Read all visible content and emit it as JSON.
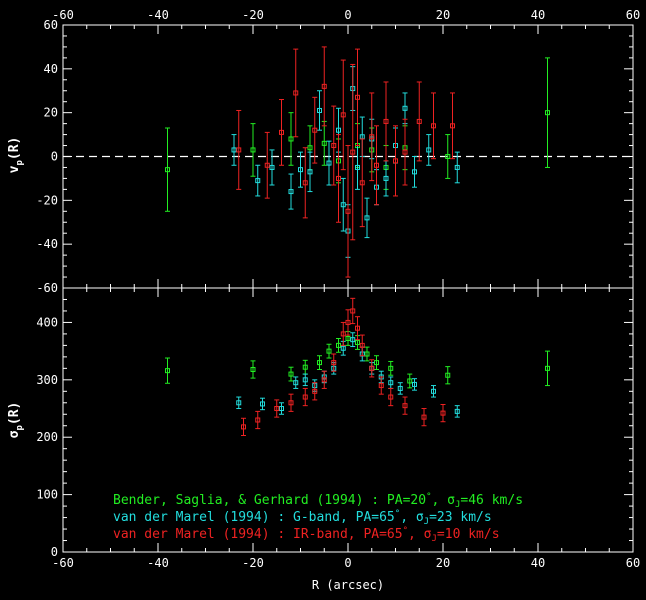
{
  "chart_data": [
    {
      "type": "scatter",
      "panel": "top",
      "title": "",
      "ylabel": "v_p(R)",
      "xlabel": "",
      "xlim": [
        -60,
        60
      ],
      "ylim": [
        -60,
        60
      ],
      "xticks": [
        -60,
        -40,
        -20,
        0,
        20,
        40,
        60
      ],
      "yticks": [
        -60,
        -40,
        -20,
        0,
        20,
        40,
        60
      ],
      "x_tick_labels_on_top": true,
      "reference_line": {
        "y": 0,
        "style": "dashed",
        "color": "#ffffff"
      },
      "series": [
        {
          "name": "Bender, Saglia, & Gerhard (1994)",
          "color": "#22ee22",
          "points": [
            {
              "x": -38,
              "y": -6,
              "err": 19
            },
            {
              "x": -20,
              "y": 3,
              "err": 12
            },
            {
              "x": -12,
              "y": 8,
              "err": 12
            },
            {
              "x": -8,
              "y": 4,
              "err": 10
            },
            {
              "x": -5,
              "y": 6,
              "err": 10
            },
            {
              "x": -2,
              "y": -2,
              "err": 10
            },
            {
              "x": 2,
              "y": 5,
              "err": 10
            },
            {
              "x": 5,
              "y": 3,
              "err": 10
            },
            {
              "x": 8,
              "y": -5,
              "err": 10
            },
            {
              "x": 12,
              "y": 4,
              "err": 10
            },
            {
              "x": 21,
              "y": 0,
              "err": 10
            },
            {
              "x": 42,
              "y": 20,
              "err": 25
            }
          ]
        },
        {
          "name": "van der Marel (1994) : G-band",
          "color": "#22dddd",
          "points": [
            {
              "x": -24,
              "y": 3,
              "err": 7
            },
            {
              "x": -19,
              "y": -11,
              "err": 7
            },
            {
              "x": -16,
              "y": -5,
              "err": 8
            },
            {
              "x": -12,
              "y": -16,
              "err": 8
            },
            {
              "x": -10,
              "y": -6,
              "err": 8
            },
            {
              "x": -8,
              "y": -7,
              "err": 9
            },
            {
              "x": -6,
              "y": 21,
              "err": 9
            },
            {
              "x": -4,
              "y": -3,
              "err": 10
            },
            {
              "x": -2,
              "y": 12,
              "err": 10
            },
            {
              "x": -1,
              "y": -22,
              "err": 12
            },
            {
              "x": 0,
              "y": -34,
              "err": 12
            },
            {
              "x": 1,
              "y": 31,
              "err": 10
            },
            {
              "x": 2,
              "y": -5,
              "err": 10
            },
            {
              "x": 3,
              "y": 9,
              "err": 9
            },
            {
              "x": 4,
              "y": -28,
              "err": 9
            },
            {
              "x": 5,
              "y": 8,
              "err": 9
            },
            {
              "x": 6,
              "y": -14,
              "err": 8
            },
            {
              "x": 8,
              "y": -10,
              "err": 8
            },
            {
              "x": 10,
              "y": 5,
              "err": 8
            },
            {
              "x": 12,
              "y": 22,
              "err": 7
            },
            {
              "x": 14,
              "y": -7,
              "err": 7
            },
            {
              "x": 17,
              "y": 3,
              "err": 7
            },
            {
              "x": 23,
              "y": -5,
              "err": 7
            }
          ]
        },
        {
          "name": "van der Marel (1994) : IR-band",
          "color": "#ee2222",
          "points": [
            {
              "x": -23,
              "y": 3,
              "err": 18
            },
            {
              "x": -17,
              "y": -4,
              "err": 15
            },
            {
              "x": -14,
              "y": 11,
              "err": 15
            },
            {
              "x": -11,
              "y": 29,
              "err": 20
            },
            {
              "x": -9,
              "y": -12,
              "err": 16
            },
            {
              "x": -7,
              "y": 12,
              "err": 15
            },
            {
              "x": -5,
              "y": 32,
              "err": 18
            },
            {
              "x": -3,
              "y": 5,
              "err": 18
            },
            {
              "x": -2,
              "y": -10,
              "err": 20
            },
            {
              "x": -1,
              "y": 19,
              "err": 25
            },
            {
              "x": 0,
              "y": -25,
              "err": 30
            },
            {
              "x": 1,
              "y": 2,
              "err": 40
            },
            {
              "x": 2,
              "y": 27,
              "err": 22
            },
            {
              "x": 3,
              "y": -12,
              "err": 20
            },
            {
              "x": 5,
              "y": 9,
              "err": 20
            },
            {
              "x": 6,
              "y": -4,
              "err": 18
            },
            {
              "x": 8,
              "y": 16,
              "err": 18
            },
            {
              "x": 10,
              "y": -2,
              "err": 16
            },
            {
              "x": 12,
              "y": 2,
              "err": 15
            },
            {
              "x": 15,
              "y": 16,
              "err": 18
            },
            {
              "x": 18,
              "y": 14,
              "err": 15
            },
            {
              "x": 22,
              "y": 14,
              "err": 15
            }
          ]
        }
      ]
    },
    {
      "type": "scatter",
      "panel": "bottom",
      "title": "",
      "ylabel": "σ_p(R)",
      "xlabel": "R (arcsec)",
      "xlim": [
        -60,
        60
      ],
      "ylim": [
        0,
        460
      ],
      "xticks": [
        -60,
        -40,
        -20,
        0,
        20,
        40,
        60
      ],
      "yticks": [
        0,
        100,
        200,
        300,
        400
      ],
      "series": [
        {
          "name": "Bender, Saglia, & Gerhard (1994)",
          "color": "#22ee22",
          "points": [
            {
              "x": -38,
              "y": 316,
              "err": 22
            },
            {
              "x": -20,
              "y": 318,
              "err": 15
            },
            {
              "x": -12,
              "y": 310,
              "err": 12
            },
            {
              "x": -9,
              "y": 322,
              "err": 12
            },
            {
              "x": -6,
              "y": 330,
              "err": 12
            },
            {
              "x": -4,
              "y": 350,
              "err": 12
            },
            {
              "x": -2,
              "y": 360,
              "err": 12
            },
            {
              "x": 0,
              "y": 372,
              "err": 12
            },
            {
              "x": 2,
              "y": 365,
              "err": 12
            },
            {
              "x": 4,
              "y": 345,
              "err": 12
            },
            {
              "x": 6,
              "y": 330,
              "err": 12
            },
            {
              "x": 9,
              "y": 320,
              "err": 12
            },
            {
              "x": 13,
              "y": 298,
              "err": 12
            },
            {
              "x": 21,
              "y": 308,
              "err": 15
            },
            {
              "x": 42,
              "y": 320,
              "err": 30
            }
          ]
        },
        {
          "name": "van der Marel (1994) : G-band",
          "color": "#22dddd",
          "points": [
            {
              "x": -23,
              "y": 260,
              "err": 10
            },
            {
              "x": -18,
              "y": 258,
              "err": 10
            },
            {
              "x": -14,
              "y": 250,
              "err": 10
            },
            {
              "x": -11,
              "y": 295,
              "err": 10
            },
            {
              "x": -9,
              "y": 300,
              "err": 10
            },
            {
              "x": -7,
              "y": 290,
              "err": 10
            },
            {
              "x": -5,
              "y": 305,
              "err": 10
            },
            {
              "x": -3,
              "y": 320,
              "err": 10
            },
            {
              "x": -1,
              "y": 355,
              "err": 12
            },
            {
              "x": 1,
              "y": 370,
              "err": 12
            },
            {
              "x": 3,
              "y": 345,
              "err": 12
            },
            {
              "x": 5,
              "y": 320,
              "err": 10
            },
            {
              "x": 7,
              "y": 305,
              "err": 10
            },
            {
              "x": 9,
              "y": 295,
              "err": 10
            },
            {
              "x": 11,
              "y": 285,
              "err": 10
            },
            {
              "x": 14,
              "y": 292,
              "err": 10
            },
            {
              "x": 18,
              "y": 280,
              "err": 10
            },
            {
              "x": 23,
              "y": 245,
              "err": 10
            }
          ]
        },
        {
          "name": "van der Marel (1994) : IR-band",
          "color": "#ee2222",
          "points": [
            {
              "x": -22,
              "y": 218,
              "err": 15
            },
            {
              "x": -19,
              "y": 230,
              "err": 15
            },
            {
              "x": -15,
              "y": 250,
              "err": 15
            },
            {
              "x": -12,
              "y": 260,
              "err": 15
            },
            {
              "x": -9,
              "y": 270,
              "err": 15
            },
            {
              "x": -7,
              "y": 280,
              "err": 15
            },
            {
              "x": -5,
              "y": 300,
              "err": 15
            },
            {
              "x": -3,
              "y": 330,
              "err": 15
            },
            {
              "x": -1,
              "y": 380,
              "err": 20
            },
            {
              "x": 0,
              "y": 400,
              "err": 22
            },
            {
              "x": 1,
              "y": 420,
              "err": 22
            },
            {
              "x": 2,
              "y": 390,
              "err": 20
            },
            {
              "x": 3,
              "y": 360,
              "err": 18
            },
            {
              "x": 5,
              "y": 320,
              "err": 15
            },
            {
              "x": 7,
              "y": 290,
              "err": 15
            },
            {
              "x": 9,
              "y": 270,
              "err": 15
            },
            {
              "x": 12,
              "y": 255,
              "err": 15
            },
            {
              "x": 16,
              "y": 235,
              "err": 15
            },
            {
              "x": 20,
              "y": 242,
              "err": 15
            }
          ]
        }
      ],
      "legend": {
        "placement": "bottom-left",
        "entries": [
          {
            "prefix": "Bender, Saglia, & Gerhard (1994) : PA=20",
            "sigma_label": ", σ",
            "sub": "J",
            "suffix": "=46 km/s",
            "color": "#22ee22"
          },
          {
            "prefix": "van der Marel (1994) : G-band, PA=65",
            "sigma_label": ", σ",
            "sub": "J",
            "suffix": "=23 km/s",
            "color": "#22dddd"
          },
          {
            "prefix": "van der Marel (1994) :  IR-band, PA=65",
            "sigma_label": ", σ",
            "sub": "J",
            "suffix": "=10 km/s",
            "color": "#ee2222"
          }
        ]
      }
    }
  ],
  "labels": {
    "top_ylabel_main": "v",
    "top_ylabel_sub": "p",
    "top_ylabel_tail": "(R)",
    "bottom_ylabel_main": "σ",
    "bottom_ylabel_sub": "p",
    "bottom_ylabel_tail": "(R)",
    "xlabel": "R (arcsec)",
    "degree": "°"
  }
}
